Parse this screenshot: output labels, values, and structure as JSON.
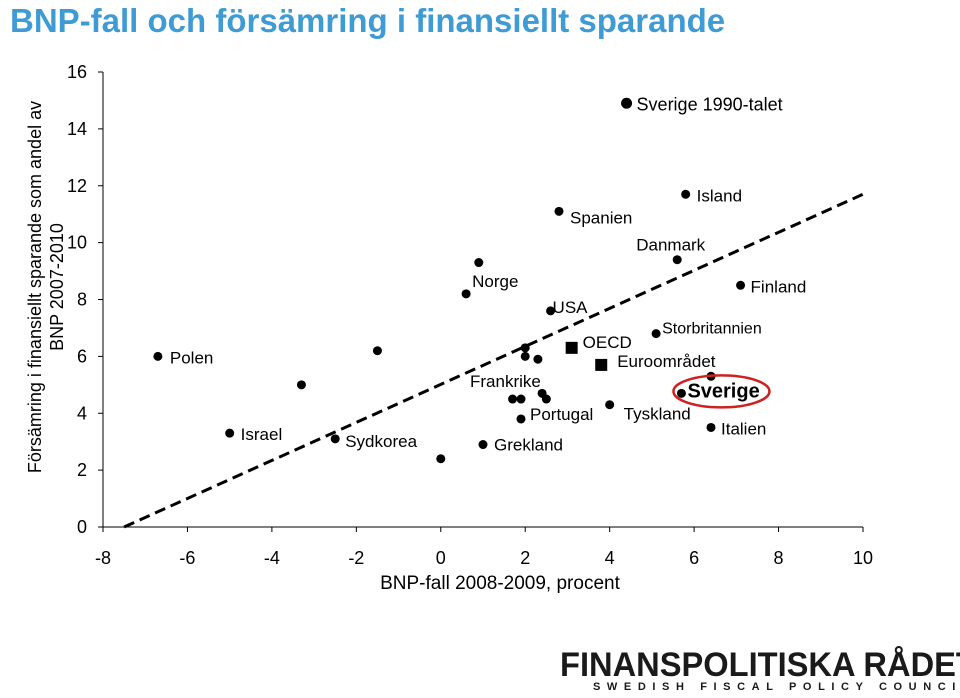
{
  "chart_data": {
    "type": "scatter",
    "title": "BNP-fall och försämring i finansiellt sparande",
    "ylabel_lines": [
      "Försämring i finansiellt sparande som andel av",
      "BNP 2007-2010"
    ],
    "xlabel": "BNP-fall 2008-2009, procent",
    "xlim": [
      -8,
      10
    ],
    "ylim": [
      0,
      16
    ],
    "xticks": [
      "-8",
      "-6",
      "-4",
      "-2",
      "0",
      "2",
      "4",
      "6",
      "8",
      "10"
    ],
    "yticks": [
      "0",
      "2",
      "4",
      "6",
      "8",
      "10",
      "12",
      "14",
      "16"
    ],
    "grid": false,
    "legend": "none",
    "trendline": {
      "style": "dashed",
      "from": [
        -7.5,
        0
      ],
      "to": [
        10,
        11.7
      ]
    },
    "points": [
      {
        "x": 4.4,
        "y": 14.9,
        "label": "Sverige 1990-talet",
        "bold": false
      },
      {
        "x": 5.8,
        "y": 11.7,
        "label": "Island"
      },
      {
        "x": 2.8,
        "y": 11.1,
        "label": "Spanien"
      },
      {
        "x": 5.6,
        "y": 9.4,
        "label": "Danmark"
      },
      {
        "x": 7.1,
        "y": 8.5,
        "label": "Finland"
      },
      {
        "x": 0.9,
        "y": 9.3,
        "label": ""
      },
      {
        "x": 0.6,
        "y": 8.2,
        "label": "Norge"
      },
      {
        "x": 2.6,
        "y": 7.6,
        "label": "USA"
      },
      {
        "x": 5.1,
        "y": 6.8,
        "label": "Storbritannien"
      },
      {
        "x": -6.7,
        "y": 6.0,
        "label": "Polen"
      },
      {
        "x": -1.5,
        "y": 6.2,
        "label": ""
      },
      {
        "x": 2.0,
        "y": 6.3,
        "label": ""
      },
      {
        "x": 2.0,
        "y": 6.0,
        "label": ""
      },
      {
        "x": 2.3,
        "y": 5.9,
        "label": ""
      },
      {
        "x": 6.4,
        "y": 5.3,
        "label": ""
      },
      {
        "x": -3.3,
        "y": 5.0,
        "label": ""
      },
      {
        "x": 5.7,
        "y": 4.7,
        "label": "Sverige",
        "bold": true,
        "circled": true
      },
      {
        "x": 2.4,
        "y": 4.7,
        "label": ""
      },
      {
        "x": 1.7,
        "y": 4.5,
        "label": ""
      },
      {
        "x": 1.9,
        "y": 4.5,
        "label": "Frankrike"
      },
      {
        "x": 2.5,
        "y": 4.5,
        "label": ""
      },
      {
        "x": 4.0,
        "y": 4.3,
        "label": "Tyskland"
      },
      {
        "x": 1.9,
        "y": 3.8,
        "label": "Portugal"
      },
      {
        "x": 6.4,
        "y": 3.5,
        "label": "Italien"
      },
      {
        "x": -5.0,
        "y": 3.3,
        "label": "Israel"
      },
      {
        "x": -2.5,
        "y": 3.1,
        "label": "Sydkorea"
      },
      {
        "x": 1.0,
        "y": 2.9,
        "label": "Grekland"
      },
      {
        "x": 0.0,
        "y": 2.4,
        "label": ""
      }
    ],
    "aggregates": [
      {
        "x": 3.1,
        "y": 6.3,
        "label": "OECD"
      },
      {
        "x": 3.8,
        "y": 5.7,
        "label": "Euroområdet"
      }
    ]
  },
  "logo": {
    "name": "FINANSPOLITISKA RÅDET",
    "subtitle": "SWEDISH FISCAL POLICY COUNCIL"
  }
}
